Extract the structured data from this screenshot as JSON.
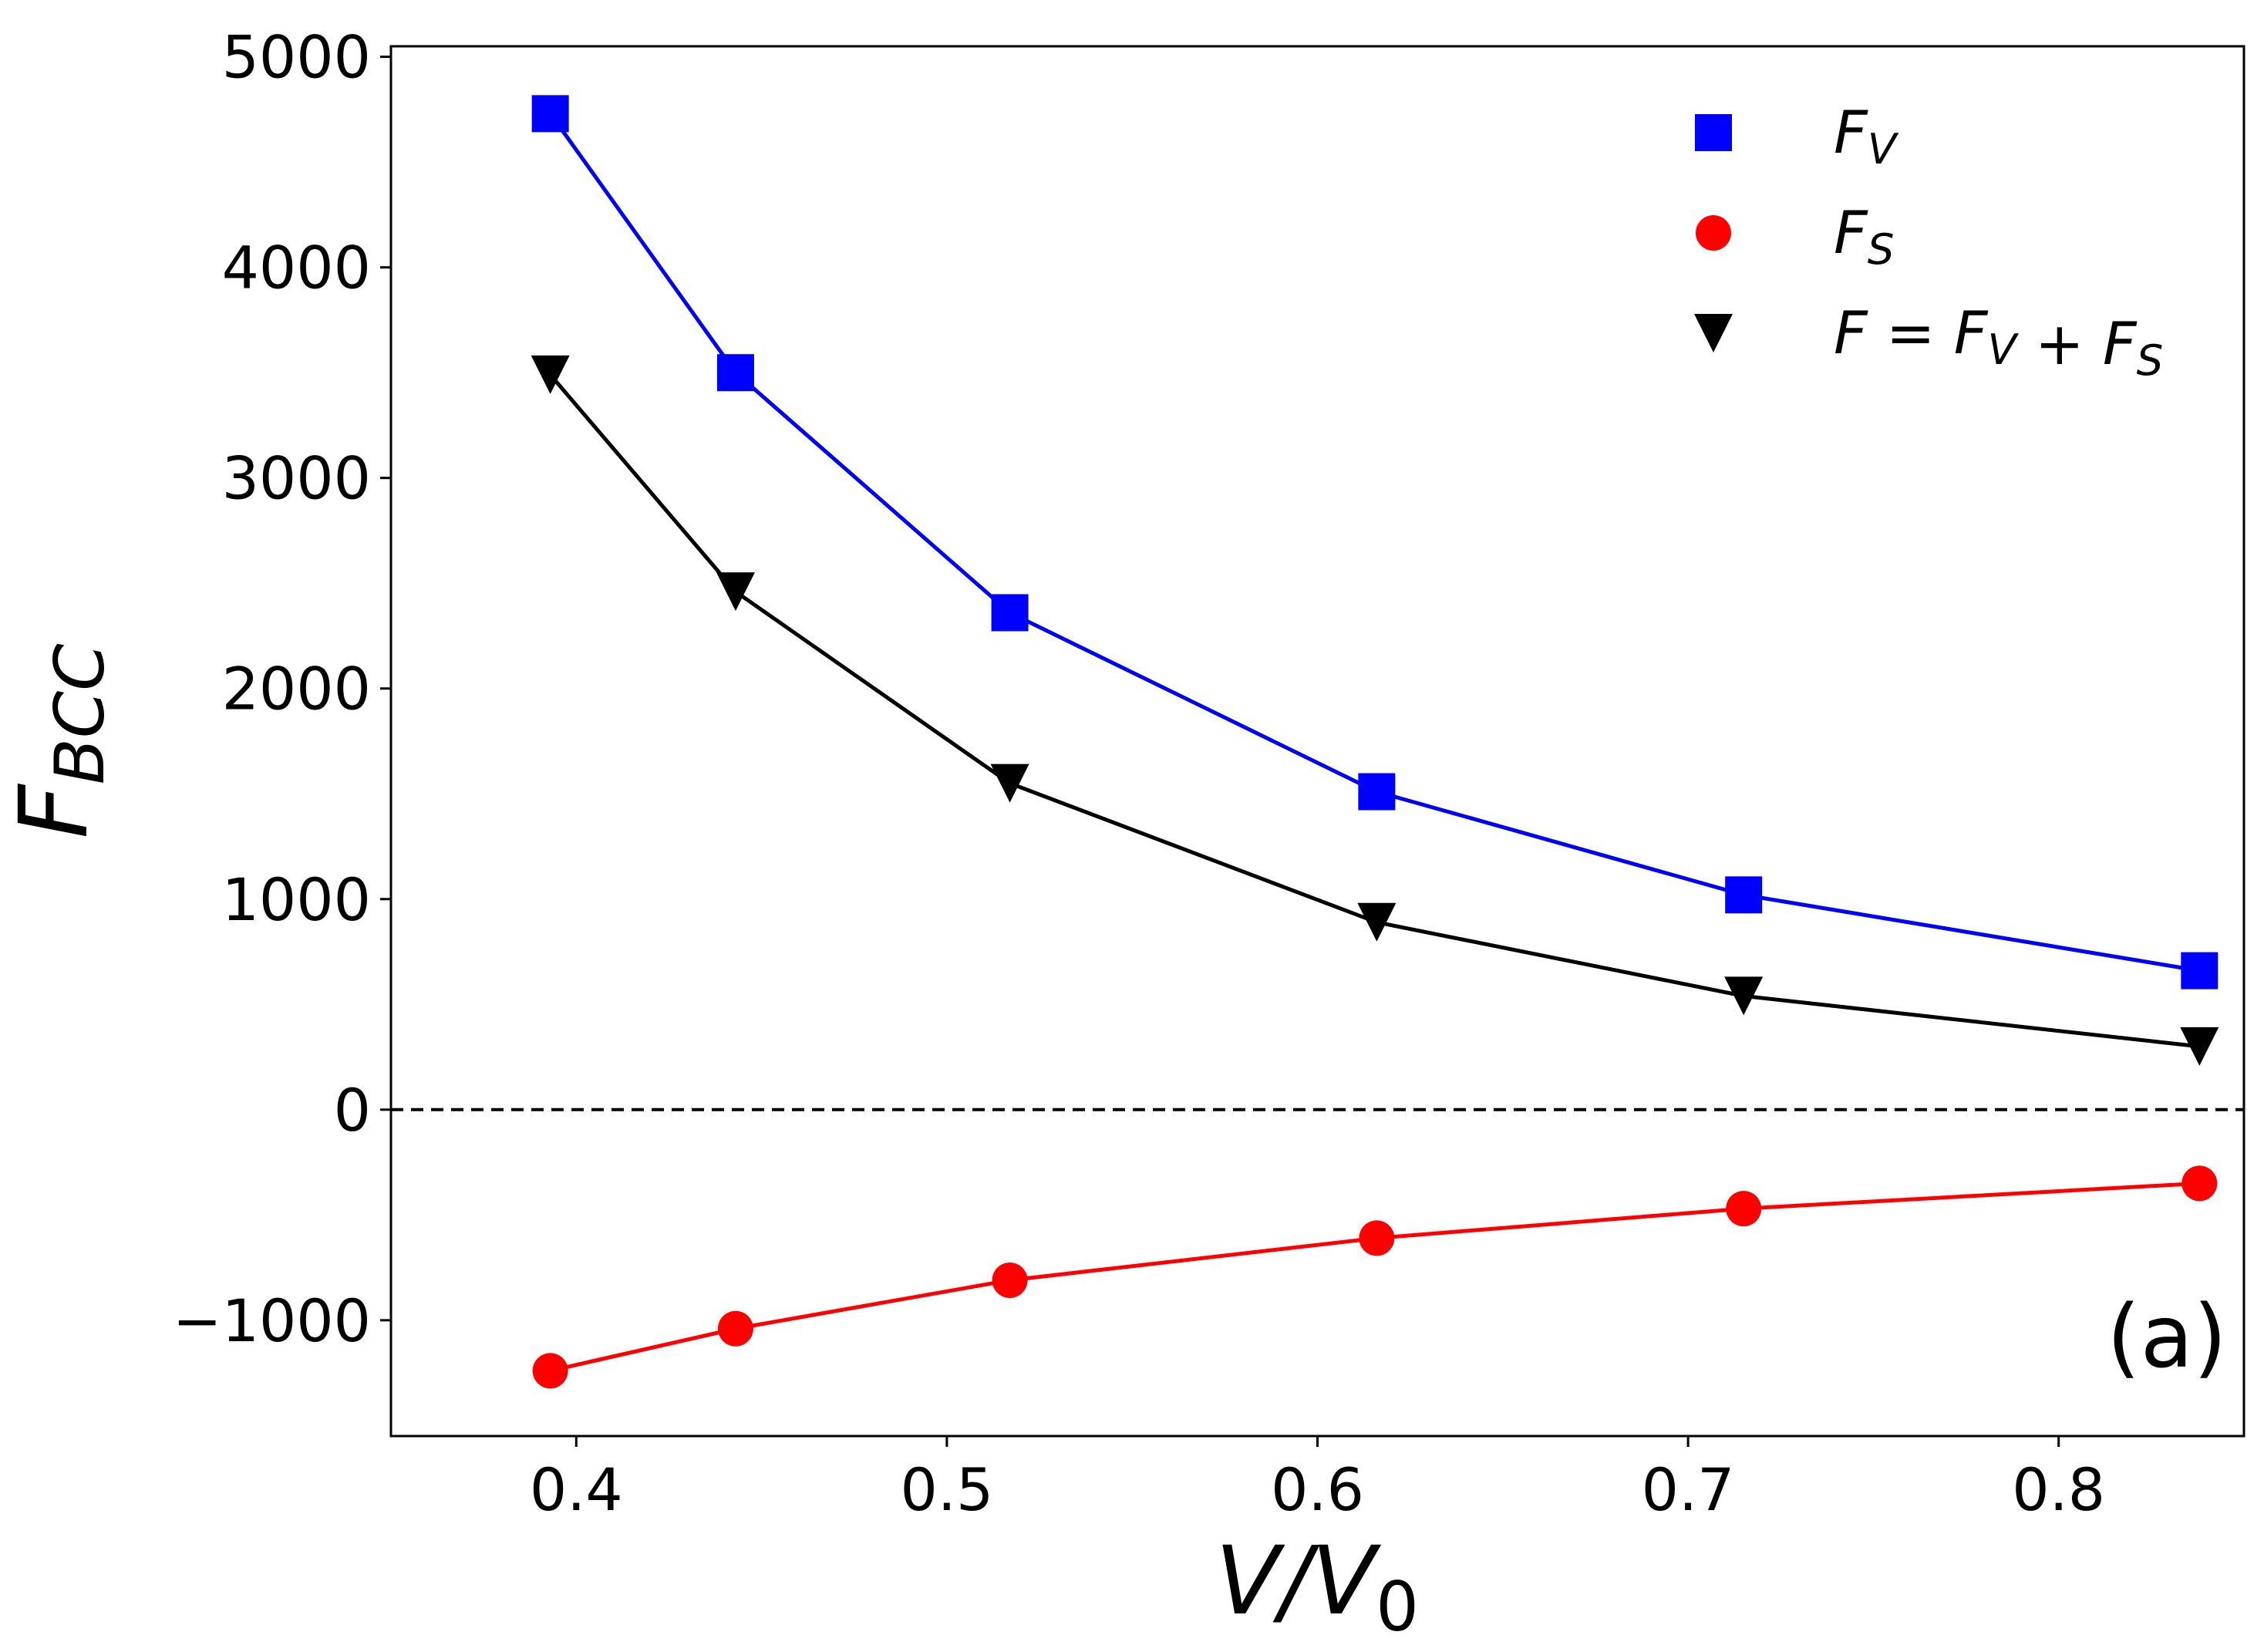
{
  "chart_data": {
    "type": "line",
    "xlabel": "V/V0",
    "ylabel": "FBCC",
    "xlim": [
      0.35,
      0.85
    ],
    "ylim": [
      -1550,
      5050
    ],
    "x_ticks": [
      0.4,
      0.5,
      0.6,
      0.7,
      0.8
    ],
    "x_tick_labels": [
      "0.4",
      "0.5",
      "0.6",
      "0.7",
      "0.8"
    ],
    "y_ticks": [
      -1000,
      0,
      1000,
      2000,
      3000,
      4000,
      5000
    ],
    "y_tick_labels": [
      "−1000",
      "0",
      "1000",
      "2000",
      "3000",
      "4000",
      "5000"
    ],
    "x": [
      0.393,
      0.443,
      0.517,
      0.616,
      0.715,
      0.838
    ],
    "series": [
      {
        "key": "FV",
        "name": "F_V",
        "color": "#0000ff",
        "marker": "square",
        "values": [
          4730,
          3500,
          2360,
          1510,
          1020,
          660
        ]
      },
      {
        "key": "FS",
        "name": "F_S",
        "color": "#ff0000",
        "marker": "circle",
        "values": [
          -1240,
          -1040,
          -810,
          -610,
          -470,
          -350
        ]
      },
      {
        "key": "F",
        "name": "F = F_V + F_S",
        "color": "#000000",
        "marker": "triangle-down",
        "values": [
          3490,
          2460,
          1550,
          890,
          540,
          300
        ]
      }
    ],
    "reference_line": {
      "y": 0,
      "style": "dashed",
      "color": "#000000"
    },
    "legend": {
      "placement": "top-right",
      "entries": [
        {
          "key": "FV",
          "base": "F",
          "sub": "V"
        },
        {
          "key": "FS",
          "base": "F",
          "sub": "S"
        },
        {
          "key": "F",
          "parts": [
            [
              "F",
              ""
            ],
            [
              " = ",
              ""
            ],
            [
              "F",
              "V"
            ],
            [
              " + ",
              ""
            ],
            [
              "F",
              "S"
            ]
          ]
        }
      ]
    },
    "annotation": "(a)",
    "grid": false
  }
}
